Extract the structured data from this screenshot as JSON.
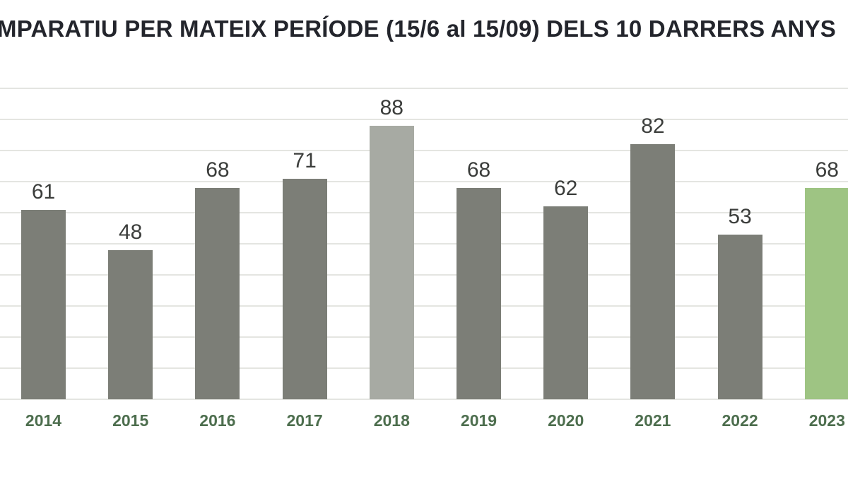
{
  "title": "MPARATIU PER MATEIX PERÍODE (15/6 al 15/09) DELS 10 DARRERS ANYS",
  "chart_data": {
    "type": "bar",
    "title": "MPARATIU PER MATEIX PERÍODE (15/6 al 15/09) DELS 10 DARRERS ANYS",
    "categories": [
      "2014",
      "2015",
      "2016",
      "2017",
      "2018",
      "2019",
      "2020",
      "2021",
      "2022",
      "2023"
    ],
    "values": [
      61,
      48,
      68,
      71,
      88,
      68,
      62,
      82,
      53,
      68
    ],
    "xlabel": "",
    "ylabel": "",
    "ylim": [
      0,
      100
    ],
    "grid": "horizontal, step 10, no tick labels visible (left edge cropped)",
    "legend": "none",
    "bar_color_default": "#7c7e77",
    "bar_color_overrides": {
      "2018": "#a7aaa3",
      "2023": "#9ec483"
    },
    "colors": {
      "title_text": "#23252c",
      "value_label": "#3b3d3b",
      "year_label": "#4d6e4e",
      "gridline": "#e4e5e1",
      "background": "#ffffff"
    }
  }
}
